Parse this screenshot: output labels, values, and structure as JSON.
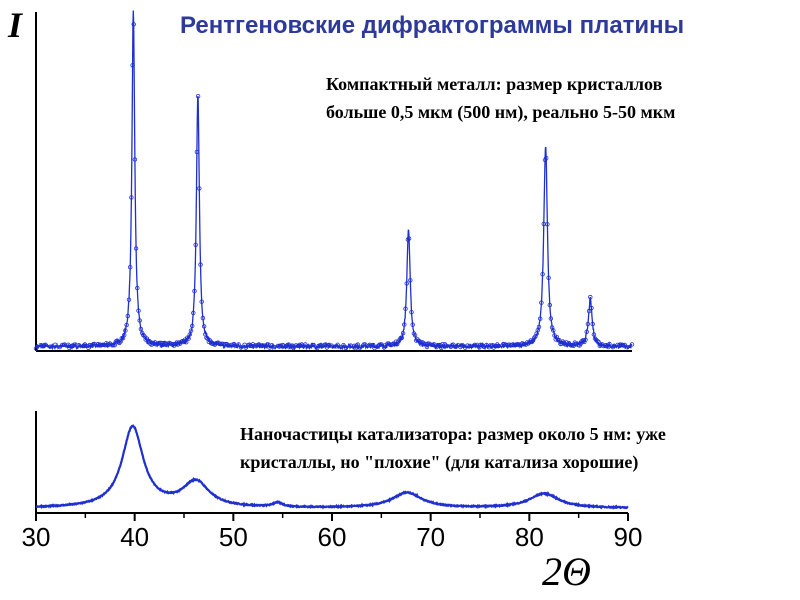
{
  "title": "Рентгеновские дифрактограммы платины",
  "notes": {
    "compact_line1": "Компактный металл: размер кристаллов",
    "compact_line2": "больше 0,5 мкм (500 нм), реально 5-50 мкм",
    "nano_line1": "Наночастицы катализатора: размер около 5 нм: уже",
    "nano_line2": "кристаллы, но \"плохие\" (для катализа хорошие)"
  },
  "ylabel": "I",
  "xlabel": "2Θ",
  "colors": {
    "series": "#1f2fd0",
    "axis": "#000000",
    "title": "#2d3a9a"
  },
  "chart_data": [
    {
      "type": "line",
      "xlabel": "",
      "ylabel": "I",
      "xlim": [
        30,
        90
      ],
      "ylim": [
        0,
        1
      ],
      "grid": false,
      "series": [
        {
          "peaks": [
            {
              "x": 39.8,
              "height": 1.0,
              "width": 0.18
            },
            {
              "x": 46.3,
              "height": 0.75,
              "width": 0.18
            },
            {
              "x": 67.5,
              "height": 0.35,
              "width": 0.2
            },
            {
              "x": 81.3,
              "height": 0.6,
              "width": 0.22
            },
            {
              "x": 85.8,
              "height": 0.14,
              "width": 0.22
            }
          ],
          "baseline": 0.01
        }
      ]
    },
    {
      "type": "line",
      "xlabel": "2Θ",
      "ylabel": "",
      "xlim": [
        30,
        90
      ],
      "ylim": [
        0,
        1
      ],
      "ticks": [
        "30",
        "40",
        "50",
        "60",
        "70",
        "80",
        "90"
      ],
      "grid": false,
      "series": [
        {
          "peaks": [
            {
              "x": 39.8,
              "height": 0.95,
              "width": 1.3
            },
            {
              "x": 46.2,
              "height": 0.3,
              "width": 1.6
            },
            {
              "x": 54.5,
              "height": 0.05,
              "width": 0.6
            },
            {
              "x": 67.6,
              "height": 0.18,
              "width": 1.8
            },
            {
              "x": 81.5,
              "height": 0.17,
              "width": 1.8
            }
          ],
          "baseline": 0.02
        }
      ]
    }
  ]
}
